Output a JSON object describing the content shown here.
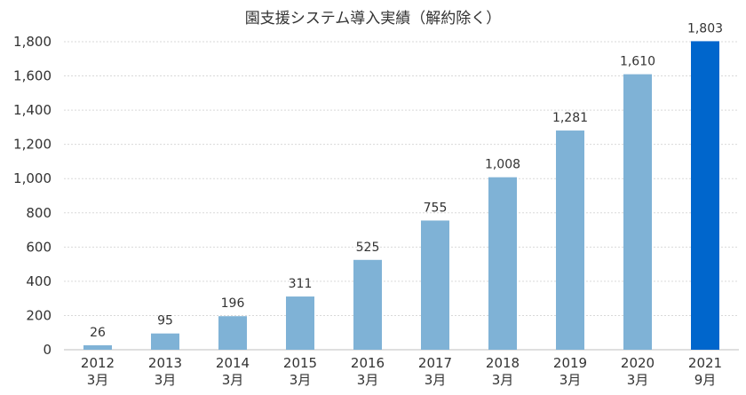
{
  "chart_data": {
    "type": "bar",
    "title": "園支援システム導入実績（解約除く）",
    "categories": [
      {
        "year": "2012",
        "month": "3月"
      },
      {
        "year": "2013",
        "month": "3月"
      },
      {
        "year": "2014",
        "month": "3月"
      },
      {
        "year": "2015",
        "month": "3月"
      },
      {
        "year": "2016",
        "month": "3月"
      },
      {
        "year": "2017",
        "month": "3月"
      },
      {
        "year": "2018",
        "month": "3月"
      },
      {
        "year": "2019",
        "month": "3月"
      },
      {
        "year": "2020",
        "month": "3月"
      },
      {
        "year": "2021",
        "month": "9月"
      }
    ],
    "values": [
      26,
      95,
      196,
      311,
      525,
      755,
      1008,
      1281,
      1610,
      1803
    ],
    "data_labels": [
      "26",
      "95",
      "196",
      "311",
      "525",
      "755",
      "1,008",
      "1,281",
      "1,610",
      "1,803"
    ],
    "yticks": [
      "0",
      "200",
      "400",
      "600",
      "800",
      "1,000",
      "1,200",
      "1,400",
      "1,600",
      "1,800"
    ],
    "ylim": [
      0,
      1800
    ],
    "grid": true,
    "colors": {
      "bar": "#7fb2d6",
      "highlight_bar": "#0066cc",
      "grid": "#d9d9d9",
      "baseline": "#bfbfbf"
    },
    "highlight_index": 9
  }
}
